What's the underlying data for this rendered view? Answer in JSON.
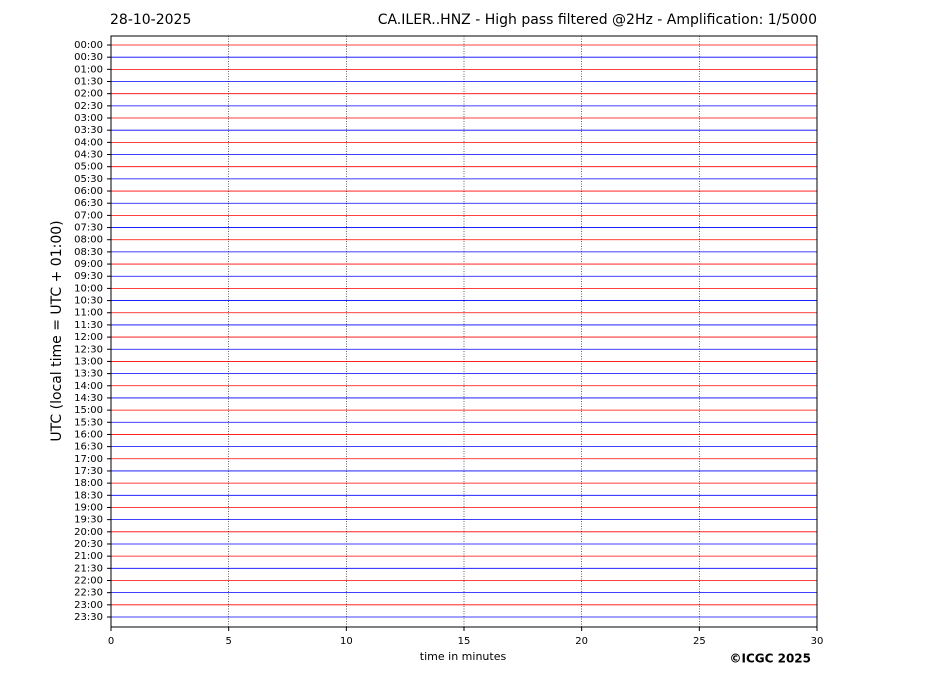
{
  "chart_data": {
    "type": "helicorder",
    "date": "28-10-2025",
    "title": "CA.ILER..HNZ - High pass filtered @2Hz - Amplification: 1/5000",
    "x_label": "time in minutes",
    "y_label": "UTC (local time = UTC + 01:00)",
    "credit": "©ICGC 2025",
    "categories": [
      "00:00",
      "00:30",
      "01:00",
      "01:30",
      "02:00",
      "02:30",
      "03:00",
      "03:30",
      "04:00",
      "04:30",
      "05:00",
      "05:30",
      "06:00",
      "06:30",
      "07:00",
      "07:30",
      "08:00",
      "08:30",
      "09:00",
      "09:30",
      "10:00",
      "10:30",
      "11:00",
      "11:30",
      "12:00",
      "12:30",
      "13:00",
      "13:30",
      "14:00",
      "14:30",
      "15:00",
      "15:30",
      "16:00",
      "16:30",
      "17:00",
      "17:30",
      "18:00",
      "18:30",
      "19:00",
      "19:30",
      "20:00",
      "20:30",
      "21:00",
      "21:30",
      "22:00",
      "22:30",
      "23:00",
      "23:30"
    ],
    "trace_colors": [
      "#ff0000",
      "#0000ff"
    ],
    "xlim": [
      0,
      30
    ],
    "xticks": [
      0,
      5,
      10,
      15,
      20,
      25,
      30
    ],
    "grid": true
  }
}
